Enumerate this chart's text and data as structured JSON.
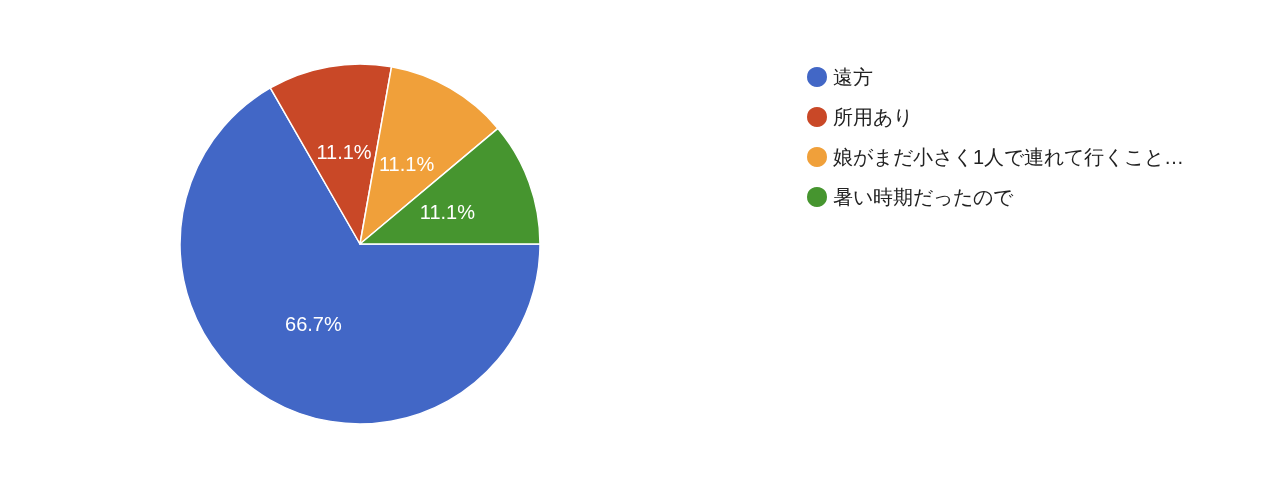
{
  "chart_data": {
    "type": "pie",
    "categories": [
      "遠方",
      "所用あり",
      "娘がまだ小さく1人で連れて行くこと…",
      "暑い時期だったので"
    ],
    "values": [
      66.7,
      11.1,
      11.1,
      11.1
    ],
    "value_labels": [
      "66.7%",
      "11.1%",
      "11.1%",
      "11.1%"
    ],
    "colors": [
      "#4267c6",
      "#c94827",
      "#f0a03a",
      "#46952f"
    ],
    "legend": "right"
  }
}
